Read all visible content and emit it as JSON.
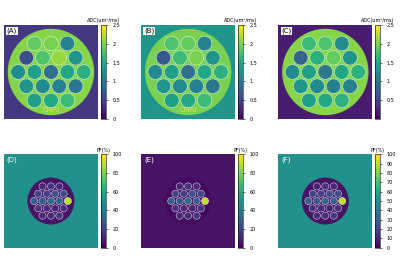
{
  "chart_data": [
    {
      "type": "heatmap",
      "title": "(A)",
      "colorbar_label": "ADC(um²/ms)",
      "clim": [
        0,
        2.5
      ],
      "cticks": [
        0,
        0.5,
        1,
        1.5,
        2,
        2.5
      ],
      "background": 0.4,
      "body": 2.05,
      "body_text": "CMRI",
      "vials": [
        1.9,
        2.0,
        1.1,
        0.6,
        1.8,
        2.1,
        1.3,
        1.2,
        1.4,
        0.9,
        1.5,
        1.6,
        1.3,
        1.2,
        1.1,
        1.0,
        1.4,
        1.5,
        1.7
      ]
    },
    {
      "type": "heatmap",
      "title": "(B)",
      "colorbar_label": "ADC(um²/ms)",
      "clim": [
        0,
        2.5
      ],
      "cticks": [
        0,
        0.5,
        1,
        1.5,
        2,
        2.5
      ],
      "background": 1.3,
      "body": 2.0,
      "body_text": "CMRI",
      "vials": [
        1.8,
        1.9,
        1.1,
        0.7,
        1.7,
        2.0,
        1.3,
        1.2,
        1.4,
        0.9,
        1.5,
        1.6,
        1.3,
        1.2,
        1.1,
        1.0,
        1.4,
        1.5,
        1.7
      ]
    },
    {
      "type": "heatmap",
      "title": "(C)",
      "colorbar_label": "ADC(um²/ms)",
      "clim": [
        0,
        2.5
      ],
      "cticks": [
        0.5,
        1,
        1.5,
        2,
        2.5
      ],
      "background": 0.2,
      "body": 2.05,
      "vials": [
        1.7,
        1.8,
        1.2,
        0.8,
        1.6,
        1.9,
        1.3,
        1.2,
        1.4,
        1.0,
        1.5,
        1.6,
        1.3,
        1.2,
        1.1,
        1.1,
        1.4,
        1.5,
        1.6
      ]
    },
    {
      "type": "heatmap",
      "title": "(D)",
      "colorbar_label": "PF(%)",
      "clim": [
        0,
        100
      ],
      "cticks": [
        0,
        20,
        40,
        60,
        80,
        100
      ],
      "background": 50,
      "body": 5,
      "vials": [
        10,
        15,
        12,
        20,
        18,
        25,
        22,
        30,
        28,
        35,
        32,
        90,
        15,
        12,
        10,
        14,
        11,
        13,
        16
      ]
    },
    {
      "type": "heatmap",
      "title": "(E)",
      "colorbar_label": "PF(%)",
      "clim": [
        0,
        100
      ],
      "cticks": [
        0,
        20,
        40,
        60,
        80,
        100
      ],
      "background": 5,
      "body": 3,
      "vials": [
        10,
        15,
        12,
        20,
        18,
        25,
        22,
        30,
        28,
        35,
        32,
        90,
        15,
        12,
        10,
        14,
        11,
        13,
        16
      ]
    },
    {
      "type": "heatmap",
      "title": "(F)",
      "colorbar_label": "PF(%)",
      "clim": [
        0,
        100
      ],
      "cticks": [
        0,
        10,
        20,
        30,
        40,
        50,
        60,
        70,
        80,
        90,
        100
      ],
      "background": 50,
      "body": 5,
      "vials": [
        10,
        15,
        12,
        20,
        18,
        25,
        22,
        30,
        28,
        35,
        32,
        90,
        15,
        12,
        10,
        14,
        11,
        13,
        16
      ]
    }
  ]
}
